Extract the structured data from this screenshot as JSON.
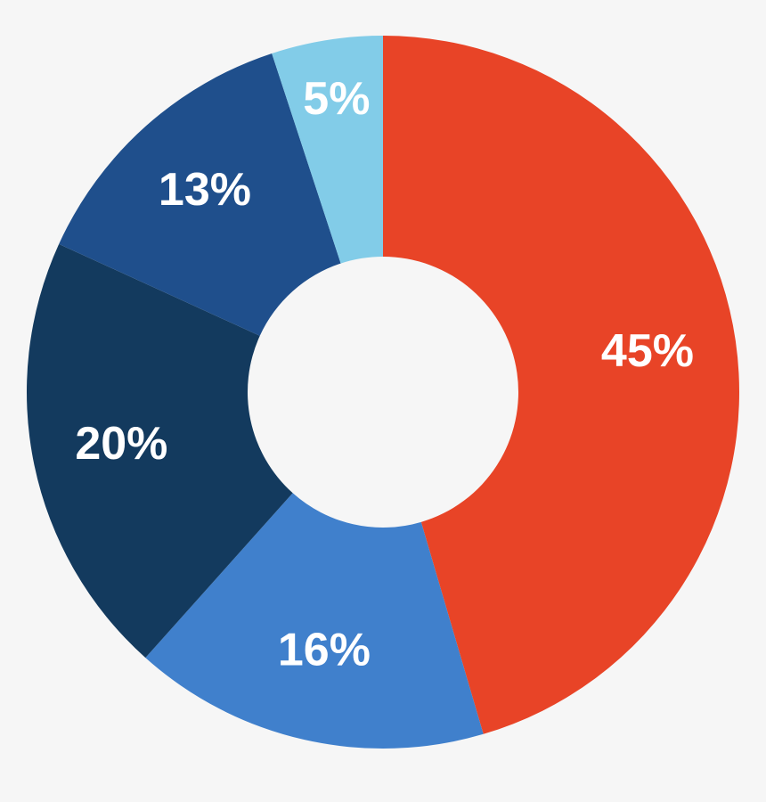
{
  "chart_data": {
    "type": "donut",
    "values": [
      45,
      16,
      20,
      13,
      5
    ],
    "value_labels": [
      "45%",
      "16%",
      "20%",
      "13%",
      "5%"
    ],
    "colors": [
      "#e84427",
      "#4080cc",
      "#133a5e",
      "#1f4f8c",
      "#82cce8"
    ]
  }
}
